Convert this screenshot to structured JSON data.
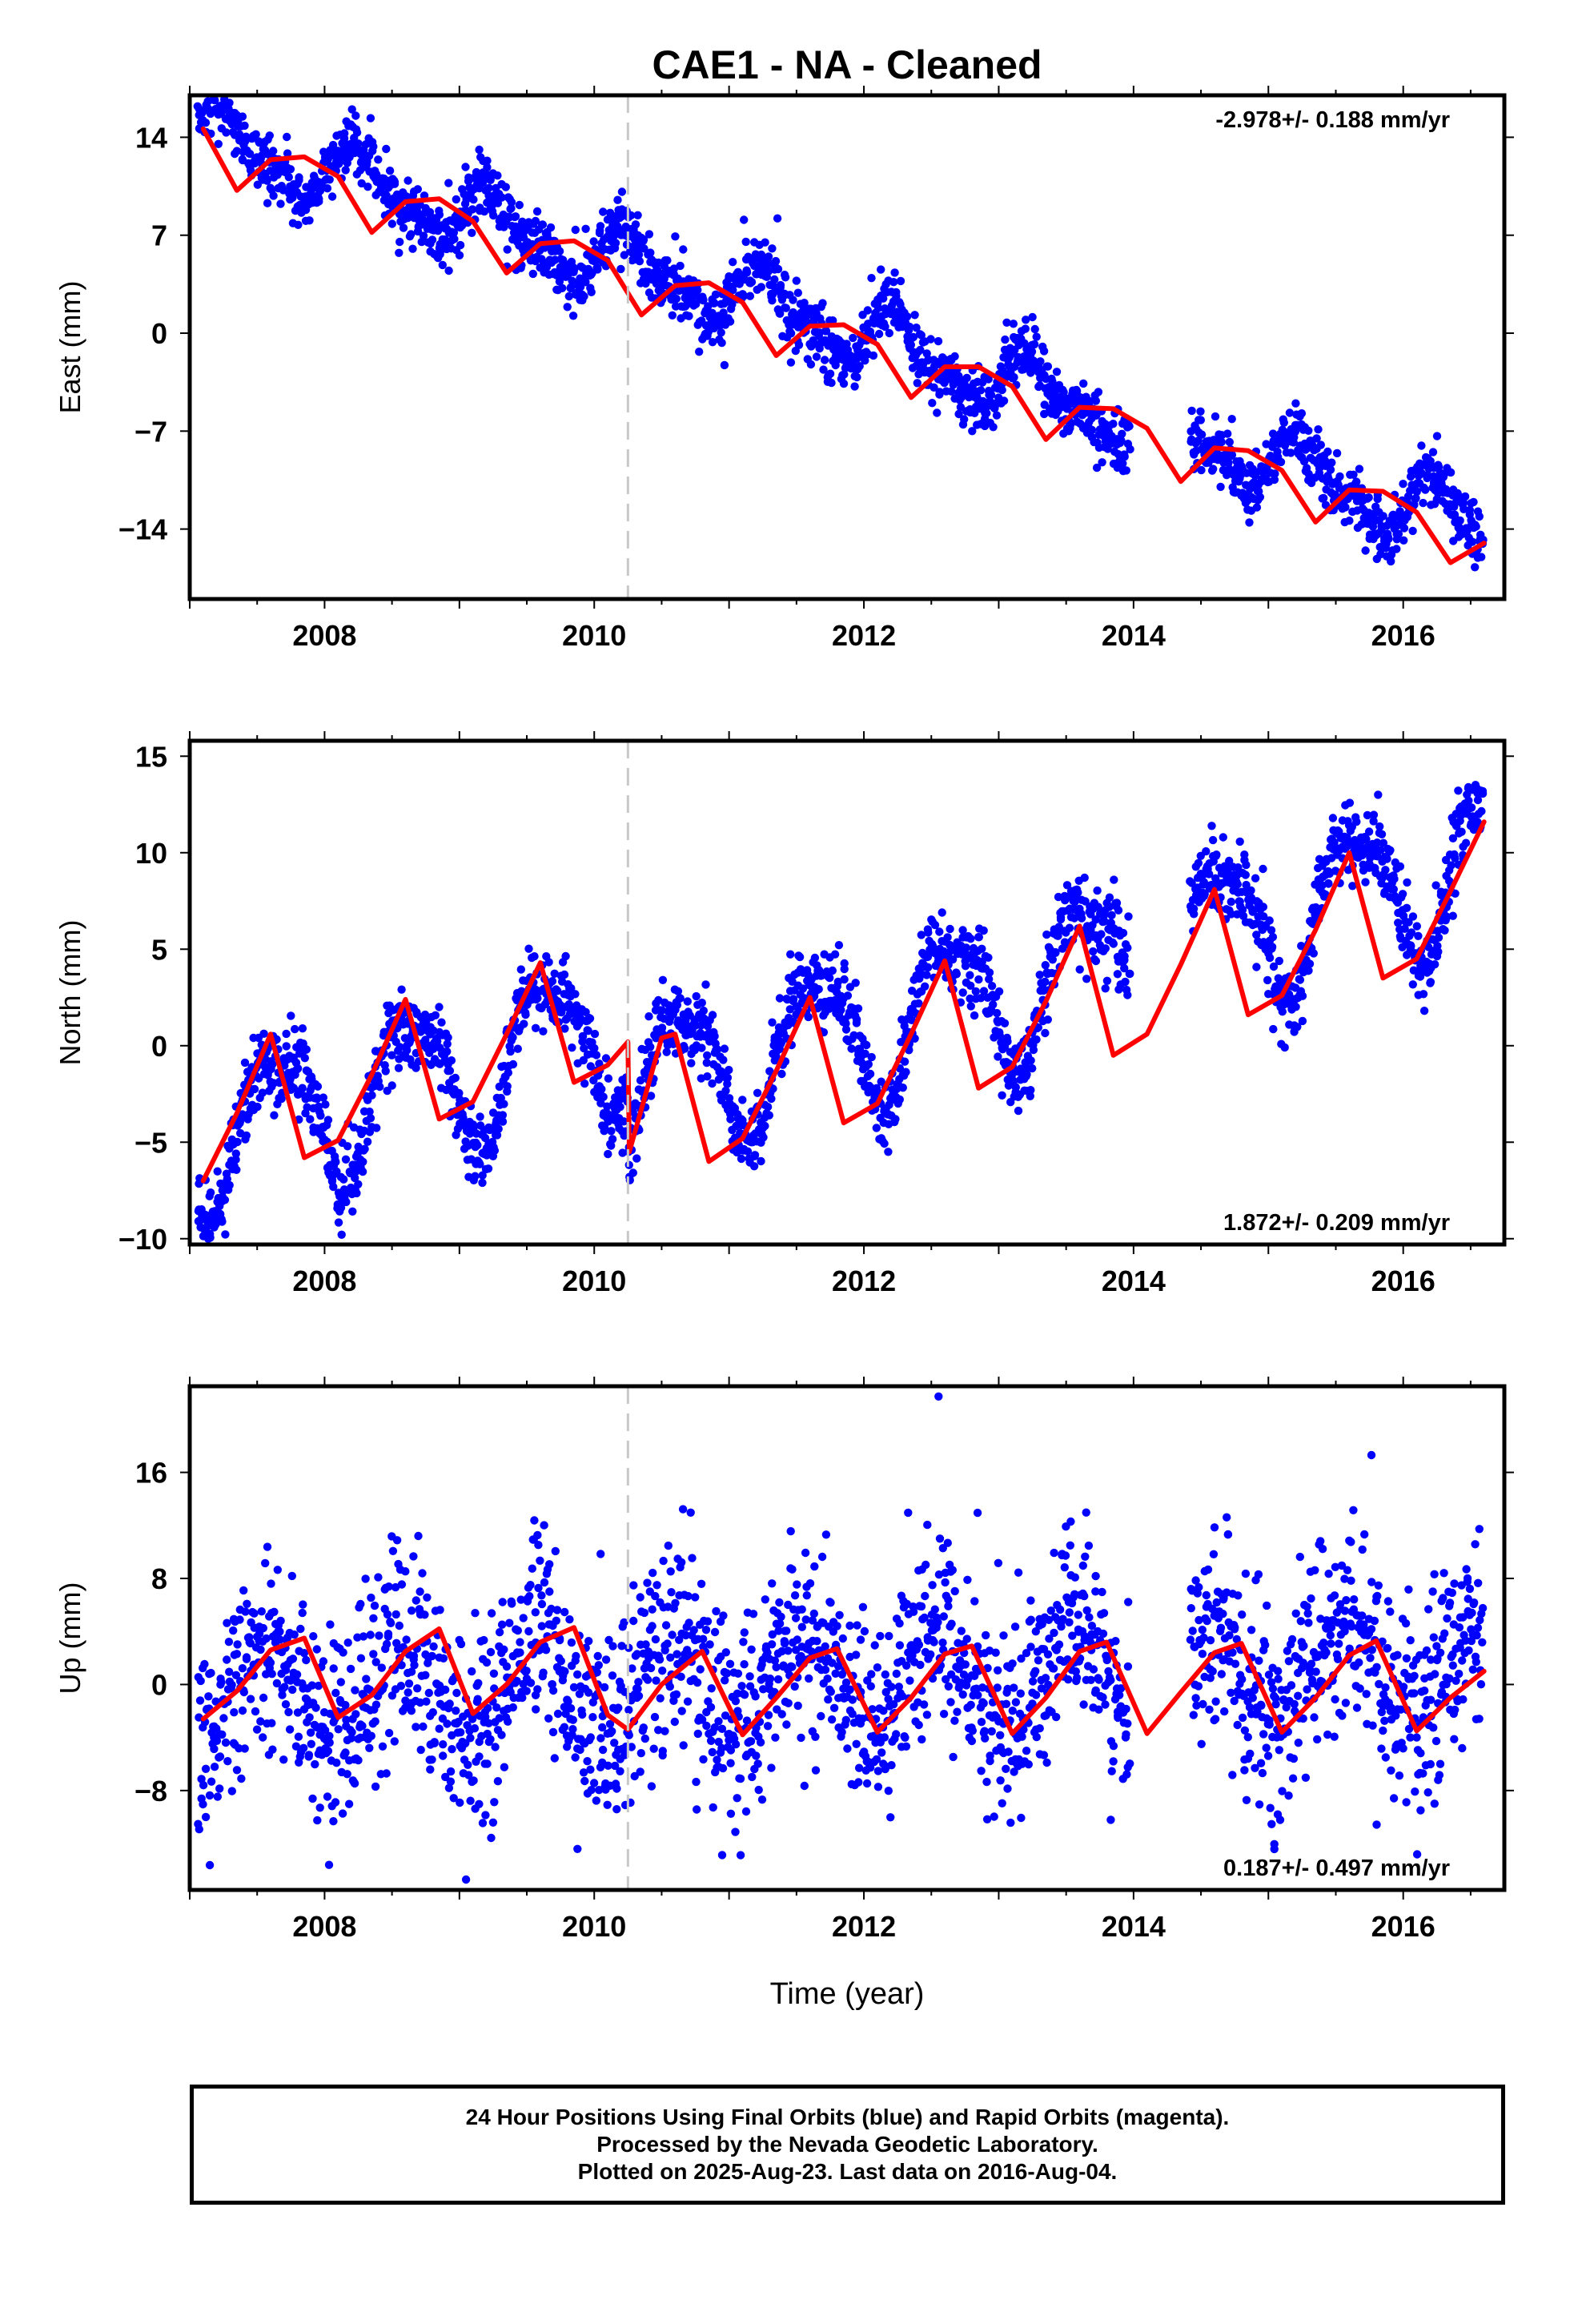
{
  "title": "CAE1  - NA - Cleaned",
  "xlabel": "Time (year)",
  "footer": {
    "line1": "24 Hour Positions Using Final Orbits (blue) and Rapid Orbits (magenta).",
    "line2": "Processed by the Nevada Geodetic Laboratory.",
    "line3": "Plotted on 2025-Aug-23. Last data on 2016-Aug-04."
  },
  "colors": {
    "points": "#0000ff",
    "model": "#ff0000",
    "equipment_change": "#c8c8c8"
  },
  "chart_data": [
    {
      "type": "scatter",
      "ylabel": "East (mm)",
      "rate_text": "-2.978+/- 0.188 mm/yr",
      "rate_position": "top-right",
      "xlim": [
        2007.0,
        2016.75
      ],
      "ylim": [
        -19.0,
        17.0
      ],
      "x_ticks": [
        2008,
        2010,
        2012,
        2014,
        2016
      ],
      "y_ticks": [
        14,
        7,
        0,
        -7,
        -14
      ],
      "y_tick_labels": [
        "14",
        "7",
        "0",
        "−7",
        "−14"
      ],
      "equipment_change_x": 2010.25,
      "model": {
        "trend_rate_mm_per_yr": -2.978,
        "trend_ref_year": 2007.1,
        "trend_value_at_ref": 14.3,
        "annual_sin": 2.05,
        "annual_cos": 0.0,
        "semiannual_sin": 0.75,
        "semiannual_cos": -0.45,
        "steps": []
      },
      "model_curve_x": [
        2007.1,
        2007.35,
        2007.6,
        2007.85,
        2008.1,
        2008.35,
        2008.6,
        2008.85,
        2009.1,
        2009.35,
        2009.6,
        2009.85,
        2010.1,
        2010.35,
        2010.6,
        2010.85,
        2011.1,
        2011.35,
        2011.6,
        2011.85,
        2012.1,
        2012.35,
        2012.6,
        2012.85,
        2013.1,
        2013.35,
        2013.6,
        2013.85,
        2014.1,
        2014.35,
        2014.6,
        2014.85,
        2015.1,
        2015.35,
        2015.6,
        2015.85,
        2016.1,
        2016.35,
        2016.6
      ],
      "model_curve_y": [
        14.6,
        10.2,
        12.4,
        12.6,
        11.2,
        7.2,
        9.4,
        9.6,
        8.0,
        4.3,
        6.4,
        6.6,
        5.2,
        1.3,
        3.4,
        3.6,
        2.2,
        -1.6,
        0.5,
        0.6,
        -0.8,
        -4.6,
        -2.4,
        -2.4,
        -3.8,
        -7.6,
        -5.3,
        -5.4,
        -6.8,
        -10.6,
        -8.2,
        -8.4,
        -9.8,
        -13.5,
        -11.2,
        -11.3,
        -12.8,
        -16.4,
        -15.0
      ],
      "scatter_noise_mm": 1.1
    },
    {
      "type": "scatter",
      "ylabel": "North (mm)",
      "rate_text": "1.872+/- 0.209 mm/yr",
      "rate_position": "bottom-right",
      "xlim": [
        2007.0,
        2016.75
      ],
      "ylim": [
        -10.3,
        15.8
      ],
      "x_ticks": [
        2008,
        2010,
        2012,
        2014,
        2016
      ],
      "y_ticks": [
        15,
        10,
        5,
        0,
        -5,
        -10
      ],
      "y_tick_labels": [
        "15",
        "10",
        "5",
        "0",
        "−5",
        "−10"
      ],
      "equipment_change_x": 2010.25,
      "model": {
        "trend_rate_mm_per_yr": 1.872,
        "trend_ref_year": 2007.1,
        "trend_value_at_ref": -4.8,
        "annual_sin": -2.8,
        "annual_cos": -2.3,
        "semiannual_sin": -0.9,
        "semiannual_cos": 0.6,
        "steps": [
          {
            "x": 2010.25,
            "dy": -3.5
          }
        ]
      },
      "model_curve_x": [
        2007.1,
        2007.35,
        2007.6,
        2007.85,
        2008.1,
        2008.35,
        2008.6,
        2008.85,
        2009.1,
        2009.35,
        2009.6,
        2009.85,
        2010.1,
        2010.25,
        2010.26,
        2010.5,
        2010.6,
        2010.85,
        2011.1,
        2011.35,
        2011.6,
        2011.85,
        2012.1,
        2012.35,
        2012.6,
        2012.85,
        2013.1,
        2013.35,
        2013.6,
        2013.85,
        2014.1,
        2014.35,
        2014.6,
        2014.85,
        2015.1,
        2015.35,
        2015.6,
        2015.85,
        2016.1,
        2016.35,
        2016.6
      ],
      "model_curve_y": [
        -7.0,
        -3.5,
        0.6,
        -5.8,
        -4.9,
        -1.5,
        2.4,
        -3.8,
        -2.9,
        0.6,
        4.3,
        -1.9,
        -1.0,
        0.2,
        -5.5,
        0.4,
        0.6,
        -6.0,
        -4.8,
        -1.3,
        2.5,
        -4.0,
        -3.0,
        0.6,
        4.4,
        -2.2,
        -1.1,
        2.3,
        6.2,
        -0.5,
        0.6,
        4.2,
        8.1,
        1.6,
        2.6,
        6.0,
        10.0,
        3.5,
        4.5,
        8.0,
        11.6
      ],
      "scatter_noise_mm": 1.0
    },
    {
      "type": "scatter",
      "ylabel": "Up (mm)",
      "rate_text": "0.187+/- 0.497 mm/yr",
      "rate_position": "bottom-right",
      "xlim": [
        2007.0,
        2016.75
      ],
      "ylim": [
        -15.5,
        22.5
      ],
      "x_ticks": [
        2008,
        2010,
        2012,
        2014,
        2016
      ],
      "y_ticks": [
        16,
        8,
        0,
        -8
      ],
      "y_tick_labels": [
        "16",
        "8",
        "0",
        "−8"
      ],
      "equipment_change_x": 2010.25,
      "model": {
        "trend_rate_mm_per_yr": 0.187,
        "trend_ref_year": 2007.1,
        "trend_value_at_ref": -0.5,
        "annual_sin": -1.2,
        "annual_cos": -3.4,
        "semiannual_sin": 0.0,
        "semiannual_cos": 0.0,
        "steps": []
      },
      "model_curve_x": [
        2007.1,
        2007.35,
        2007.6,
        2007.85,
        2008.1,
        2008.35,
        2008.6,
        2008.85,
        2009.1,
        2009.35,
        2009.6,
        2009.85,
        2010.1,
        2010.25,
        2010.5,
        2010.8,
        2011.1,
        2011.35,
        2011.6,
        2011.8,
        2012.1,
        2012.35,
        2012.6,
        2012.8,
        2013.1,
        2013.35,
        2013.6,
        2013.8,
        2014.1,
        2014.35,
        2014.6,
        2014.8,
        2015.1,
        2015.35,
        2015.6,
        2015.8,
        2016.1,
        2016.35,
        2016.6
      ],
      "model_curve_y": [
        -2.6,
        -0.5,
        2.6,
        3.5,
        -2.5,
        -0.8,
        2.5,
        4.2,
        -2.2,
        0.0,
        3.2,
        4.3,
        -2.3,
        -3.4,
        0.0,
        2.5,
        -3.8,
        -1.0,
        2.0,
        2.7,
        -3.6,
        -1.0,
        2.3,
        2.9,
        -3.7,
        -1.0,
        2.5,
        3.2,
        -3.7,
        -0.6,
        2.4,
        3.1,
        -3.6,
        -1.0,
        2.2,
        3.3,
        -3.5,
        -1.0,
        1.0
      ],
      "scatter_noise_mm": 3.8
    }
  ]
}
